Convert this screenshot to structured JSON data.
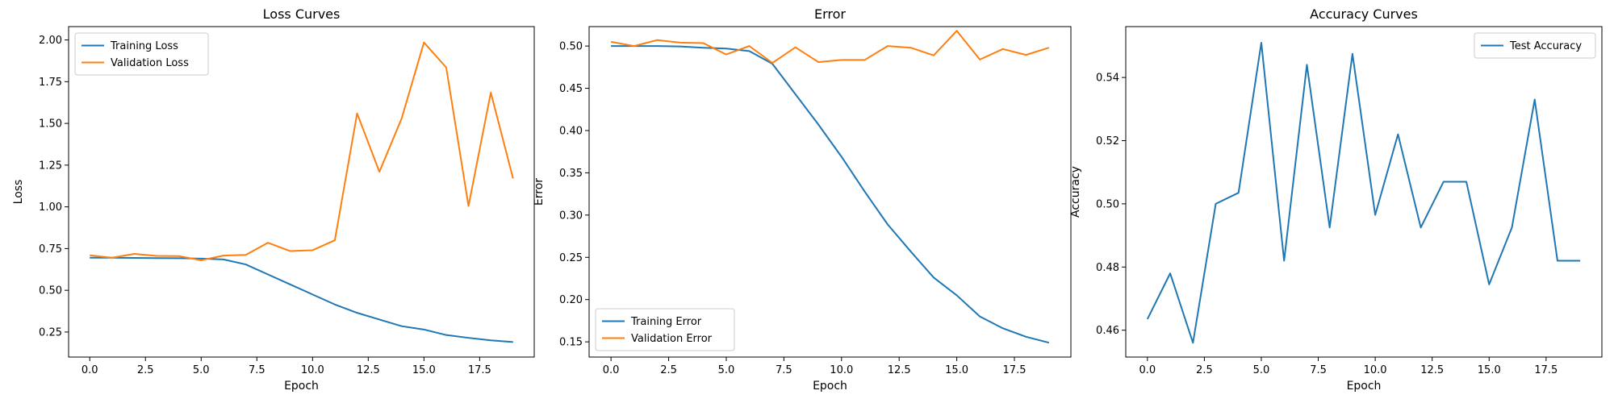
{
  "chart_data": [
    {
      "type": "line",
      "title": "Loss Curves",
      "xlabel": "Epoch",
      "ylabel": "Loss",
      "xlim": [
        -0.95,
        19.95
      ],
      "ylim": [
        0.1,
        2.08
      ],
      "xticks": [
        "0.0",
        "2.5",
        "5.0",
        "7.5",
        "10.0",
        "12.5",
        "15.0",
        "17.5"
      ],
      "yticks": [
        "0.25",
        "0.50",
        "0.75",
        "1.00",
        "1.25",
        "1.50",
        "1.75",
        "2.00"
      ],
      "legend": "upper-left",
      "grid": false,
      "x": [
        0,
        1,
        2,
        3,
        4,
        5,
        6,
        7,
        8,
        9,
        10,
        11,
        12,
        13,
        14,
        15,
        16,
        17,
        18,
        19
      ],
      "series": [
        {
          "name": "Training Loss",
          "color": "#1f77b4",
          "values": [
            0.695,
            0.695,
            0.694,
            0.693,
            0.692,
            0.69,
            0.685,
            0.655,
            0.595,
            0.535,
            0.475,
            0.415,
            0.365,
            0.325,
            0.285,
            0.265,
            0.232,
            0.215,
            0.2,
            0.19
          ]
        },
        {
          "name": "Validation Loss",
          "color": "#ff7f0e",
          "values": [
            0.71,
            0.695,
            0.718,
            0.706,
            0.705,
            0.68,
            0.708,
            0.712,
            0.785,
            0.735,
            0.74,
            0.8,
            1.56,
            1.21,
            1.53,
            1.985,
            1.835,
            1.005,
            1.685,
            1.17
          ]
        }
      ]
    },
    {
      "type": "line",
      "title": "Error",
      "xlabel": "Epoch",
      "ylabel": "Error",
      "xlim": [
        -0.95,
        19.95
      ],
      "ylim": [
        0.132,
        0.523
      ],
      "xticks": [
        "0.0",
        "2.5",
        "5.0",
        "7.5",
        "10.0",
        "12.5",
        "15.0",
        "17.5"
      ],
      "yticks": [
        "0.15",
        "0.20",
        "0.25",
        "0.30",
        "0.35",
        "0.40",
        "0.45",
        "0.50"
      ],
      "legend": "lower-left",
      "grid": false,
      "x": [
        0,
        1,
        2,
        3,
        4,
        5,
        6,
        7,
        8,
        9,
        10,
        11,
        12,
        13,
        14,
        15,
        16,
        17,
        18,
        19
      ],
      "series": [
        {
          "name": "Training Error",
          "color": "#1f77b4",
          "values": [
            0.5,
            0.5,
            0.5,
            0.4995,
            0.498,
            0.497,
            0.494,
            0.479,
            0.443,
            0.407,
            0.369,
            0.328,
            0.289,
            0.257,
            0.226,
            0.205,
            0.18,
            0.166,
            0.156,
            0.149
          ]
        },
        {
          "name": "Validation Error",
          "color": "#ff7f0e",
          "values": [
            0.505,
            0.5,
            0.507,
            0.504,
            0.5035,
            0.49,
            0.5,
            0.48,
            0.4985,
            0.481,
            0.4835,
            0.4835,
            0.5,
            0.498,
            0.489,
            0.518,
            0.484,
            0.4965,
            0.4895,
            0.498
          ]
        }
      ]
    },
    {
      "type": "line",
      "title": "Accuracy Curves",
      "xlabel": "Epoch",
      "ylabel": "Accuracy",
      "xlim": [
        -0.95,
        19.95
      ],
      "ylim": [
        0.4515,
        0.5561
      ],
      "xticks": [
        "0.0",
        "2.5",
        "5.0",
        "7.5",
        "10.0",
        "12.5",
        "15.0",
        "17.5"
      ],
      "yticks": [
        "0.46",
        "0.48",
        "0.50",
        "0.52",
        "0.54"
      ],
      "legend": "upper-right",
      "grid": false,
      "x": [
        0,
        1,
        2,
        3,
        4,
        5,
        6,
        7,
        8,
        9,
        10,
        11,
        12,
        13,
        14,
        15,
        16,
        17,
        18,
        19
      ],
      "series": [
        {
          "name": "Test Accuracy",
          "color": "#1f77b4",
          "values": [
            0.4635,
            0.478,
            0.456,
            0.5,
            0.5035,
            0.551,
            0.482,
            0.544,
            0.4925,
            0.5475,
            0.4965,
            0.522,
            0.4925,
            0.507,
            0.507,
            0.4745,
            0.4925,
            0.533,
            0.482,
            0.482
          ]
        }
      ]
    }
  ]
}
